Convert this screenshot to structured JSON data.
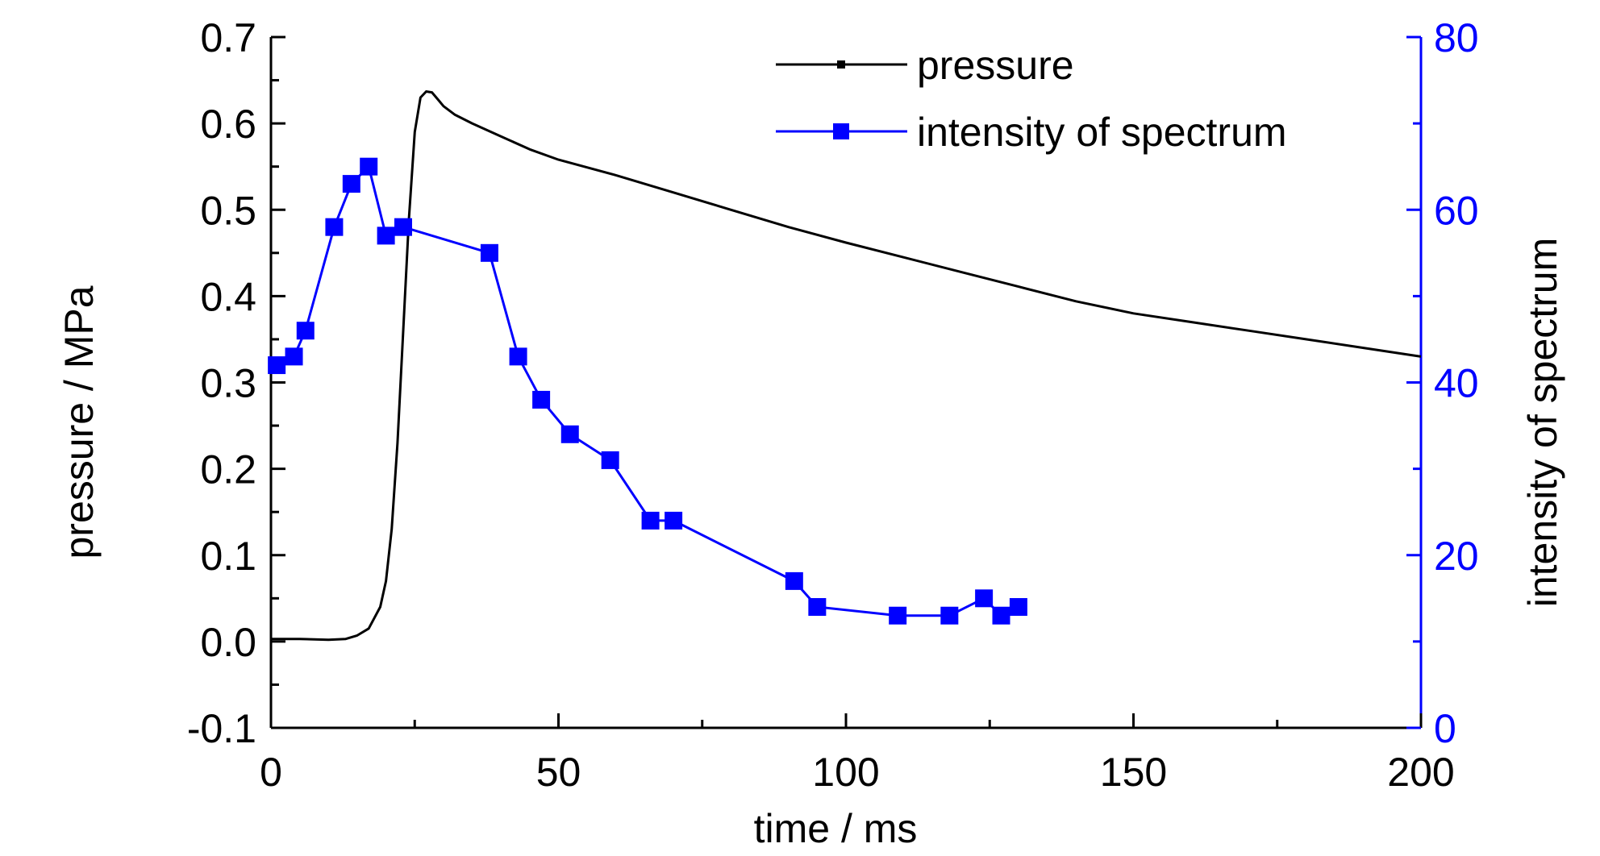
{
  "chart_data": {
    "type": "line",
    "xlabel": "time / ms",
    "ylabel": "pressure / MPa",
    "y2label": "intensity of spectrum",
    "xlim": [
      0,
      200
    ],
    "ylim": [
      -0.1,
      0.7
    ],
    "y2lim": [
      0,
      80
    ],
    "x_ticks": [
      "0",
      "50",
      "100",
      "150",
      "200"
    ],
    "y_ticks": [
      "-0.1",
      "0.0",
      "0.1",
      "0.2",
      "0.3",
      "0.4",
      "0.5",
      "0.6",
      "0.7"
    ],
    "y2_ticks": [
      "0",
      "20",
      "40",
      "60",
      "80"
    ],
    "grid": false,
    "legend_position": "top-right",
    "series": [
      {
        "name": "pressure",
        "axis": "left",
        "color": "#000000",
        "marker": "none",
        "x": [
          0,
          5,
          10,
          13,
          15,
          17,
          19,
          20,
          21,
          22,
          23,
          24,
          25,
          26,
          27,
          28,
          29,
          30,
          32,
          35,
          40,
          45,
          50,
          60,
          70,
          80,
          90,
          100,
          110,
          120,
          130,
          140,
          150,
          160,
          170,
          180,
          190,
          200
        ],
        "y": [
          0.003,
          0.003,
          0.002,
          0.003,
          0.007,
          0.015,
          0.04,
          0.07,
          0.13,
          0.23,
          0.36,
          0.49,
          0.59,
          0.63,
          0.637,
          0.636,
          0.628,
          0.62,
          0.61,
          0.6,
          0.585,
          0.57,
          0.558,
          0.54,
          0.52,
          0.5,
          0.48,
          0.462,
          0.445,
          0.428,
          0.411,
          0.394,
          0.38,
          0.37,
          0.36,
          0.35,
          0.34,
          0.33
        ]
      },
      {
        "name": "intensity of spectrum",
        "axis": "right",
        "color": "#0000ff",
        "marker": "square",
        "x": [
          1,
          4,
          6,
          11,
          14,
          17,
          20,
          23,
          38,
          43,
          47,
          52,
          59,
          66,
          70,
          91,
          95,
          109,
          118,
          124,
          127,
          130
        ],
        "y": [
          42,
          43,
          46,
          58,
          63,
          65,
          57,
          58,
          55,
          43,
          38,
          34,
          31,
          24,
          24,
          17,
          14,
          13,
          13,
          15,
          13,
          14
        ]
      }
    ]
  }
}
